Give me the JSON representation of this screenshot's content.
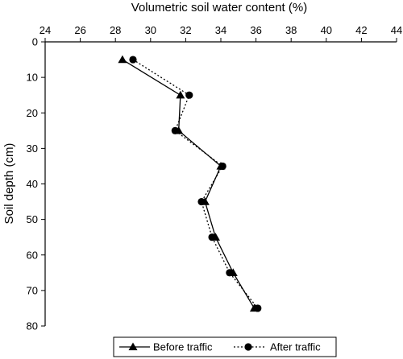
{
  "chart_data": {
    "type": "line",
    "xlabel": "Volumetric soil water content (%)",
    "ylabel": "Soil depth (cm)",
    "xlim": [
      24,
      44
    ],
    "ylim": [
      0,
      80
    ],
    "x_ticks": [
      24,
      26,
      28,
      30,
      32,
      34,
      36,
      38,
      40,
      42,
      44
    ],
    "y_ticks": [
      0,
      10,
      20,
      30,
      40,
      50,
      60,
      70,
      80
    ],
    "x_axis_position": "top",
    "y_axis_inverted": true,
    "grid": false,
    "legend_position": "bottom-center",
    "series": [
      {
        "name": "Before traffic",
        "marker": "triangle",
        "line_style": "solid",
        "color": "#000000",
        "points": [
          {
            "x": 28.4,
            "y": 5
          },
          {
            "x": 31.7,
            "y": 15
          },
          {
            "x": 31.6,
            "y": 25
          },
          {
            "x": 34.0,
            "y": 35
          },
          {
            "x": 33.1,
            "y": 45
          },
          {
            "x": 33.7,
            "y": 55
          },
          {
            "x": 34.7,
            "y": 65
          },
          {
            "x": 35.9,
            "y": 75
          }
        ]
      },
      {
        "name": "After traffic",
        "marker": "circle",
        "line_style": "dotted",
        "color": "#000000",
        "points": [
          {
            "x": 29.0,
            "y": 5
          },
          {
            "x": 32.2,
            "y": 15
          },
          {
            "x": 31.4,
            "y": 25
          },
          {
            "x": 34.1,
            "y": 35
          },
          {
            "x": 32.9,
            "y": 45
          },
          {
            "x": 33.5,
            "y": 55
          },
          {
            "x": 34.5,
            "y": 65
          },
          {
            "x": 36.1,
            "y": 75
          }
        ]
      }
    ]
  }
}
